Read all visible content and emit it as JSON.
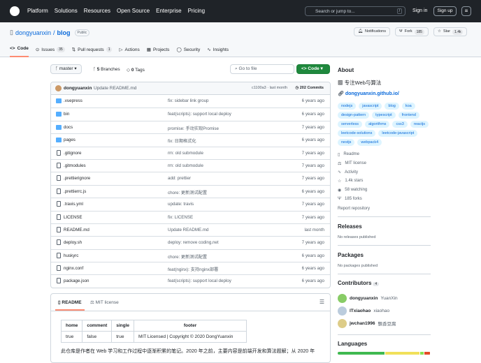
{
  "header": {
    "nav": [
      "Platform",
      "Solutions",
      "Resources",
      "Open Source",
      "Enterprise",
      "Pricing"
    ],
    "search_placeholder": "Search or jump to...",
    "search_key": "/",
    "sign_in": "Sign in",
    "sign_up": "Sign up"
  },
  "repo": {
    "owner": "dongyuanxin",
    "name": "blog",
    "visibility": "Public",
    "notifications": "Notifications",
    "fork": "Fork",
    "fork_count": "185",
    "star": "Star",
    "star_count": "1.4k"
  },
  "tabs": [
    {
      "label": "Code"
    },
    {
      "label": "Issues",
      "count": "35"
    },
    {
      "label": "Pull requests",
      "count": "1"
    },
    {
      "label": "Actions"
    },
    {
      "label": "Projects"
    },
    {
      "label": "Security"
    },
    {
      "label": "Insights"
    }
  ],
  "toolbar": {
    "branch": "master",
    "branches_count": "5",
    "branches_label": "Branches",
    "tags_count": "0",
    "tags_label": "Tags",
    "go_to_file": "Go to file",
    "code": "Code"
  },
  "commit": {
    "author": "dongyuanxin",
    "message": "Update README.md",
    "hash_time": "c1100a3 · last month",
    "commits": "202 Commits"
  },
  "files": [
    {
      "name": ".vuepress",
      "type": "dir",
      "message": "fix: sidebar link group",
      "time": "6 years ago"
    },
    {
      "name": "bin",
      "type": "dir",
      "message": "feat(scripts): support local deploy",
      "time": "6 years ago"
    },
    {
      "name": "docs",
      "type": "dir",
      "message": "promise: 手动实现Promise",
      "time": "7 years ago"
    },
    {
      "name": "pages",
      "type": "dir",
      "message": "fix: 日期格式化",
      "time": "6 years ago"
    },
    {
      "name": ".gitignore",
      "type": "file",
      "message": "rm: old submodule",
      "time": "7 years ago"
    },
    {
      "name": ".gitmodules",
      "type": "file",
      "message": "rm: old submodule",
      "time": "7 years ago"
    },
    {
      "name": ".prettierignore",
      "type": "file",
      "message": "add: prettier",
      "time": "7 years ago"
    },
    {
      "name": ".prettierrc.js",
      "type": "file",
      "message": "chore: 更新测试配置",
      "time": "6 years ago"
    },
    {
      "name": ".travis.yml",
      "type": "file",
      "message": "update: travis",
      "time": "7 years ago"
    },
    {
      "name": "LICENSE",
      "type": "file",
      "message": "fix: LICENSE",
      "time": "7 years ago"
    },
    {
      "name": "README.md",
      "type": "file",
      "message": "Update README.md",
      "time": "last month"
    },
    {
      "name": "deploy.sh",
      "type": "file",
      "message": "deploy: remove coding.net",
      "time": "7 years ago"
    },
    {
      "name": "huskyrc",
      "type": "file",
      "message": "chore: 更新测试配置",
      "time": "6 years ago"
    },
    {
      "name": "nginx.conf",
      "type": "file",
      "message": "feat(nginx): 支持nginx部署",
      "time": "6 years ago"
    },
    {
      "name": "package.json",
      "type": "file",
      "message": "feat(scripts): support local deploy",
      "time": "6 years ago"
    }
  ],
  "readme": {
    "tabs": [
      "README",
      "MIT license"
    ],
    "table": {
      "headers": [
        "home",
        "comment",
        "single",
        "footer"
      ],
      "row": [
        "true",
        "false",
        "true",
        "MIT Licensed | Copyright © 2020 DongYuanxin"
      ]
    },
    "text": "此仓库是作者在 Web 学习和工作过程中逐渐积累的笔记。2020 年之前，主要内容是前端开发和算法题解；从 2020 年"
  },
  "about": {
    "title": "About",
    "description": "专注Web与算法",
    "link": "dongyuanxin.github.io/",
    "topics": [
      "nodejs",
      "javascript",
      "blog",
      "koa",
      "design-pattern",
      "typescript",
      "frontend",
      "serverless",
      "algorithms",
      "css3",
      "reactjs",
      "leetcode-solutions",
      "leetcode-javascript",
      "nestjs",
      "webpack4"
    ],
    "meta": [
      {
        "icon": "book-icon",
        "label": "Readme"
      },
      {
        "icon": "law-icon",
        "label": "MIT license"
      },
      {
        "icon": "pulse-icon",
        "label": "Activity"
      },
      {
        "icon": "star-icon",
        "label": "1.4k stars"
      },
      {
        "icon": "eye-icon",
        "label": "58 watching"
      },
      {
        "icon": "fork-icon",
        "label": "185 forks"
      }
    ],
    "report": "Report repository"
  },
  "releases": {
    "title": "Releases",
    "text": "No releases published"
  },
  "packages": {
    "title": "Packages",
    "text": "No packages published"
  },
  "contributors": {
    "title": "Contributors",
    "count": "4",
    "list": [
      {
        "login": "dongyuanxin",
        "name": "YuanXin"
      },
      {
        "login": "ITxiaohao",
        "name": "xiaohao"
      },
      {
        "login": "jwchan1996",
        "name": "飘香豆腐"
      }
    ]
  },
  "languages": {
    "title": "Languages",
    "colors": [
      "#3fb950",
      "#f1e05a",
      "#89e051",
      "#e34c26"
    ],
    "shares": [
      52,
      38,
      4,
      6
    ]
  }
}
